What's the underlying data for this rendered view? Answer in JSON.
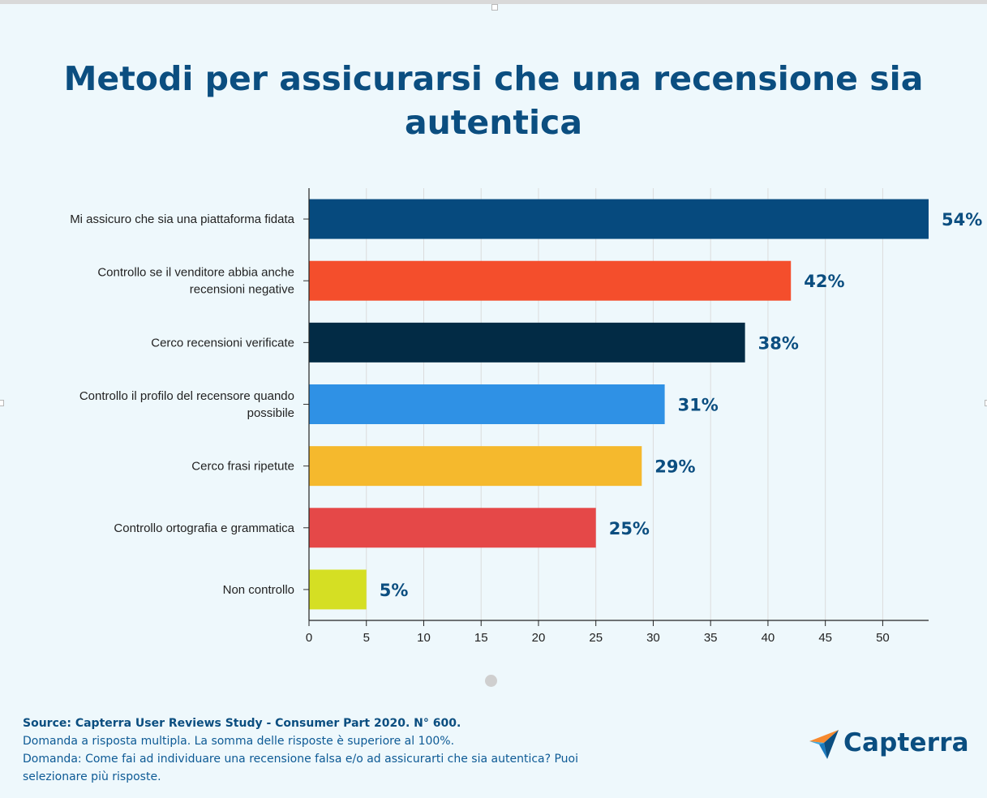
{
  "chart_data": {
    "type": "bar",
    "orientation": "horizontal",
    "title": "Metodi per assicurarsi che una recensione sia autentica",
    "categories": [
      "Mi assicuro che sia una piattaforma fidata",
      "Controllo se il venditore abbia anche recensioni negative",
      "Cerco recensioni verificate",
      "Controllo il profilo del recensore quando possibile",
      "Cerco frasi ripetute",
      "Controllo ortografia e grammatica",
      "Non controllo"
    ],
    "values": [
      54,
      42,
      38,
      31,
      29,
      25,
      5
    ],
    "data_labels": [
      "54%",
      "42%",
      "38%",
      "31%",
      "29%",
      "25%",
      "5%"
    ],
    "colors": [
      "#064a7e",
      "#f44e2c",
      "#022b45",
      "#2f91e5",
      "#f5b92d",
      "#e54848",
      "#d5df23"
    ],
    "xlim": [
      0,
      54
    ],
    "xticks": [
      0,
      5,
      10,
      15,
      20,
      25,
      30,
      35,
      40,
      45,
      50
    ],
    "xlabel": "",
    "ylabel": "",
    "grid": true,
    "legend": false,
    "label_color": "#0b4e80"
  },
  "footer": {
    "source": "Source: Capterra User Reviews Study - Consumer Part 2020. N° 600.",
    "note1": "Domanda a risposta multipla. La somma delle risposte è superiore al 100%.",
    "note2": "Domanda: Come fai ad individuare una recensione falsa e/o ad assicurarti che sia autentica? Puoi selezionare più risposte."
  },
  "logo": {
    "text": "Capterra",
    "icon": "capterra-arrow-icon"
  }
}
